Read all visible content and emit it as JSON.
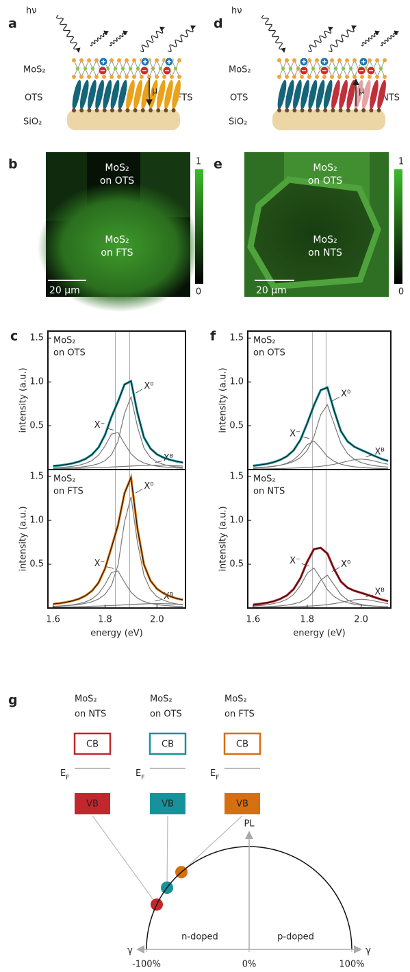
{
  "panel_a": {
    "label": "a",
    "light": "hν",
    "layer": "MoS₂",
    "left": "OTS",
    "right": "FTS",
    "substrate": "SiO₂",
    "dipole": "μ"
  },
  "panel_d": {
    "label": "d",
    "light": "hν",
    "layer": "MoS₂",
    "left": "OTS",
    "right": "NTS",
    "substrate": "SiO₂",
    "dipole": "μ"
  },
  "panel_b": {
    "label": "b",
    "region_top": [
      "MoS₂",
      "on OTS"
    ],
    "region_bottom": [
      "MoS₂",
      "on FTS"
    ],
    "scalebar": "20 μm",
    "colorbar": {
      "max": 1,
      "min": 0
    }
  },
  "panel_e": {
    "label": "e",
    "region_top": [
      "MoS₂",
      "on OTS"
    ],
    "region_bottom": [
      "MoS₂",
      "on NTS"
    ],
    "scalebar": "20 μm",
    "colorbar": {
      "max": 1,
      "min": 0
    }
  },
  "chart_data": [
    {
      "type": "line",
      "label": "c",
      "annotation": [
        "MoS₂",
        "on OTS"
      ],
      "ylabel": "intensity (a.u.)",
      "x": [
        1.6,
        1.625,
        1.65,
        1.675,
        1.7,
        1.725,
        1.75,
        1.775,
        1.8,
        1.825,
        1.85,
        1.875,
        1.9,
        1.925,
        1.95,
        1.975,
        2.0,
        2.025,
        2.05,
        2.075,
        2.1
      ],
      "xlim": [
        1.58,
        2.11
      ],
      "ylim": [
        0,
        1.58
      ],
      "yticks": [
        0.5,
        {
          "value": 1,
          "label": "1.0"
        },
        1.5
      ],
      "guides": [
        1.84,
        1.895
      ],
      "series": [
        {
          "color": "#17929a",
          "values": [
            0.04,
            0.047,
            0.057,
            0.071,
            0.091,
            0.122,
            0.171,
            0.253,
            0.395,
            0.602,
            0.775,
            0.971,
            1.01,
            0.647,
            0.367,
            0.24,
            0.174,
            0.137,
            0.112,
            0.094,
            0.08
          ]
        },
        {
          "name": "X⁻",
          "color": "#777777",
          "values": [
            0.018,
            0.023,
            0.028,
            0.037,
            0.05,
            0.07,
            0.104,
            0.164,
            0.268,
            0.404,
            0.423,
            0.295,
            0.18,
            0.113,
            0.075,
            0.053,
            0.039,
            0.03,
            0.024,
            0.019,
            0.016
          ]
        },
        {
          "name": "X⁰",
          "color": "#777777",
          "values": [
            0.012,
            0.014,
            0.017,
            0.021,
            0.026,
            0.035,
            0.047,
            0.067,
            0.102,
            0.17,
            0.32,
            0.64,
            0.83,
            0.49,
            0.245,
            0.137,
            0.085,
            0.058,
            0.041,
            0.031,
            0.024
          ]
        },
        {
          "name": "Xᴮ",
          "color": "#777777",
          "values": [
            0.01,
            0.01,
            0.012,
            0.013,
            0.015,
            0.017,
            0.02,
            0.022,
            0.025,
            0.028,
            0.032,
            0.036,
            0.04,
            0.044,
            0.047,
            0.05,
            0.05,
            0.049,
            0.047,
            0.044,
            0.04
          ]
        }
      ]
    },
    {
      "type": "line",
      "annotation": [
        "MoS₂",
        "on FTS"
      ],
      "ylabel": "intensity (a.u.)",
      "xlabel": "energy (eV)",
      "x": [
        1.6,
        1.625,
        1.65,
        1.675,
        1.7,
        1.725,
        1.75,
        1.775,
        1.8,
        1.825,
        1.85,
        1.875,
        1.9,
        1.925,
        1.95,
        1.975,
        2.0,
        2.025,
        2.05,
        2.075,
        2.1
      ],
      "xlim": [
        1.58,
        2.11
      ],
      "ylim": [
        0,
        1.58
      ],
      "xticks": [
        1.6,
        1.8,
        {
          "value": 2,
          "label": "2.0"
        }
      ],
      "yticks": [
        0.5,
        {
          "value": 1,
          "label": "1.0"
        },
        1.5
      ],
      "guides": [
        1.84,
        1.895
      ],
      "series": [
        {
          "color": "#d4700f",
          "values": [
            0.046,
            0.054,
            0.066,
            0.082,
            0.105,
            0.141,
            0.196,
            0.289,
            0.449,
            0.692,
            0.945,
            1.31,
            1.49,
            0.907,
            0.497,
            0.313,
            0.219,
            0.168,
            0.134,
            0.11,
            0.093
          ]
        },
        {
          "name": "X⁻",
          "color": "#777777",
          "values": [
            0.018,
            0.023,
            0.028,
            0.037,
            0.05,
            0.07,
            0.104,
            0.164,
            0.268,
            0.404,
            0.423,
            0.295,
            0.18,
            0.113,
            0.075,
            0.053,
            0.039,
            0.03,
            0.024,
            0.019,
            0.016
          ]
        },
        {
          "name": "X⁰",
          "color": "#777777",
          "values": [
            0.018,
            0.021,
            0.026,
            0.032,
            0.04,
            0.054,
            0.072,
            0.103,
            0.156,
            0.26,
            0.49,
            0.98,
            1.27,
            0.75,
            0.375,
            0.21,
            0.13,
            0.089,
            0.063,
            0.047,
            0.037
          ]
        },
        {
          "name": "Xᴮ",
          "color": "#777777",
          "values": [
            0.01,
            0.01,
            0.012,
            0.013,
            0.015,
            0.017,
            0.02,
            0.022,
            0.025,
            0.028,
            0.032,
            0.036,
            0.04,
            0.044,
            0.047,
            0.05,
            0.05,
            0.049,
            0.047,
            0.044,
            0.04
          ]
        }
      ]
    },
    {
      "type": "line",
      "label": "f",
      "annotation": [
        "MoS₂",
        "on OTS"
      ],
      "ylabel": "intensity (a.u.)",
      "x": [
        1.6,
        1.625,
        1.65,
        1.675,
        1.7,
        1.725,
        1.75,
        1.775,
        1.8,
        1.825,
        1.85,
        1.875,
        1.9,
        1.925,
        1.95,
        1.975,
        2.0,
        2.025,
        2.05,
        2.075,
        2.1
      ],
      "xlim": [
        1.58,
        2.11
      ],
      "ylim": [
        0,
        1.58
      ],
      "yticks": [
        0.5,
        {
          "value": 1,
          "label": "1.0"
        },
        1.5
      ],
      "guides": [
        1.82,
        1.87
      ],
      "series": [
        {
          "color": "#17929a",
          "values": [
            0.043,
            0.053,
            0.065,
            0.083,
            0.11,
            0.152,
            0.22,
            0.339,
            0.527,
            0.732,
            0.906,
            0.936,
            0.672,
            0.439,
            0.319,
            0.26,
            0.224,
            0.19,
            0.155,
            0.123,
            0.098
          ]
        },
        {
          "name": "X⁻",
          "color": "#777777",
          "values": [
            0.016,
            0.02,
            0.026,
            0.035,
            0.049,
            0.072,
            0.111,
            0.182,
            0.284,
            0.327,
            0.243,
            0.149,
            0.093,
            0.061,
            0.043,
            0.031,
            0.024,
            0.019,
            0.015,
            0.012,
            0.01
          ]
        },
        {
          "name": "X⁰",
          "color": "#777777",
          "values": [
            0.02,
            0.025,
            0.03,
            0.038,
            0.049,
            0.066,
            0.092,
            0.137,
            0.219,
            0.375,
            0.626,
            0.74,
            0.519,
            0.301,
            0.18,
            0.116,
            0.08,
            0.058,
            0.044,
            0.034,
            0.028
          ]
        },
        {
          "name": "Xᴮ",
          "color": "#777777",
          "values": [
            0.007,
            0.008,
            0.009,
            0.01,
            0.012,
            0.014,
            0.017,
            0.02,
            0.024,
            0.03,
            0.037,
            0.047,
            0.06,
            0.077,
            0.096,
            0.113,
            0.12,
            0.113,
            0.096,
            0.077,
            0.06
          ]
        }
      ]
    },
    {
      "type": "line",
      "annotation": [
        "MoS₂",
        "on NTS"
      ],
      "ylabel": "intensity (a.u.)",
      "xlabel": "energy (eV)",
      "x": [
        1.6,
        1.625,
        1.65,
        1.675,
        1.7,
        1.725,
        1.75,
        1.775,
        1.8,
        1.825,
        1.85,
        1.875,
        1.9,
        1.925,
        1.95,
        1.975,
        2.0,
        2.025,
        2.05,
        2.075,
        2.1
      ],
      "xlim": [
        1.58,
        2.11
      ],
      "ylim": [
        0,
        1.58
      ],
      "xticks": [
        1.6,
        1.8,
        {
          "value": 2,
          "label": "2.0"
        }
      ],
      "yticks": [
        0.5,
        {
          "value": 1,
          "label": "1.0"
        },
        1.5
      ],
      "guides": [
        1.82,
        1.87
      ],
      "series": [
        {
          "color": "#b5202a",
          "values": [
            0.038,
            0.047,
            0.059,
            0.076,
            0.103,
            0.145,
            0.216,
            0.34,
            0.527,
            0.671,
            0.687,
            0.622,
            0.443,
            0.302,
            0.231,
            0.196,
            0.174,
            0.149,
            0.123,
            0.098,
            0.078
          ]
        },
        {
          "name": "X⁻",
          "color": "#777777",
          "values": [
            0.022,
            0.028,
            0.036,
            0.049,
            0.068,
            0.1,
            0.155,
            0.254,
            0.396,
            0.456,
            0.339,
            0.208,
            0.13,
            0.085,
            0.06,
            0.043,
            0.033,
            0.026,
            0.021,
            0.017,
            0.014
          ]
        },
        {
          "name": "X⁰",
          "color": "#777777",
          "values": [
            0.01,
            0.012,
            0.015,
            0.019,
            0.025,
            0.033,
            0.047,
            0.069,
            0.111,
            0.19,
            0.317,
            0.375,
            0.263,
            0.153,
            0.091,
            0.059,
            0.041,
            0.029,
            0.022,
            0.017,
            0.014
          ]
        },
        {
          "name": "Xᴮ",
          "color": "#777777",
          "values": [
            0.006,
            0.007,
            0.008,
            0.008,
            0.01,
            0.012,
            0.014,
            0.017,
            0.02,
            0.025,
            0.031,
            0.039,
            0.05,
            0.064,
            0.08,
            0.094,
            0.1,
            0.094,
            0.08,
            0.064,
            0.05
          ]
        }
      ]
    }
  ],
  "panel_g": {
    "label": "g",
    "fermi": {
      "main": "E",
      "sub": "F"
    },
    "columns": [
      {
        "title": [
          "MoS₂",
          "on NTS"
        ],
        "cb": "CB",
        "vb": "VB",
        "color": "#c1272d",
        "gamma": -90
      },
      {
        "title": [
          "MoS₂",
          "on OTS"
        ],
        "cb": "CB",
        "vb": "VB",
        "color": "#17929a",
        "gamma": -80
      },
      {
        "title": [
          "MoS₂",
          "on FTS"
        ],
        "cb": "CB",
        "vb": "VB",
        "color": "#d4700f",
        "gamma": -66
      }
    ],
    "ylabel": "PL",
    "xlabel": "γ",
    "regions": [
      "n-doped",
      "p-doped"
    ],
    "xlim": [
      -100,
      100
    ],
    "xticks": [
      {
        "value": -100,
        "label": "-100%"
      },
      {
        "value": 0,
        "label": "0%"
      },
      {
        "value": 100,
        "label": "100%"
      }
    ]
  }
}
